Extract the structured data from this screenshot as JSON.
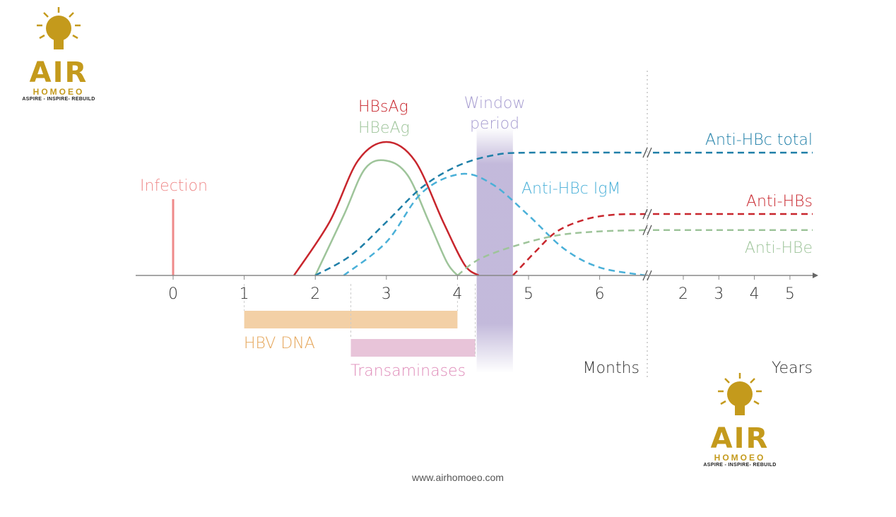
{
  "logo": {
    "brand": "AIR",
    "sub": "HOMOEO",
    "tagline": "ASPIRE - INSPIRE- REBUILD",
    "color": "#c49a1c"
  },
  "website": "www.airhomoeo.com",
  "chart_data": {
    "type": "line",
    "title": "",
    "x_units_left": "Months",
    "x_units_right": "Years",
    "month_ticks": [
      "0",
      "1",
      "2",
      "3",
      "4",
      "5",
      "6"
    ],
    "year_ticks": [
      "2",
      "3",
      "4",
      "5"
    ],
    "ylabel": "",
    "ylim": [
      0,
      100
    ],
    "infection": {
      "label": "Infection",
      "month": 0,
      "color": "#ef8a8a"
    },
    "window_period": {
      "label_line1": "Window",
      "label_line2": "period",
      "start": 4.27,
      "end": 4.78,
      "color": "#b4a8d2"
    },
    "series": [
      {
        "name": "HBsAg",
        "color": "#c8262d",
        "dashed": false,
        "points": [
          [
            1.7,
            0
          ],
          [
            2.2,
            40
          ],
          [
            2.6,
            86
          ],
          [
            3,
            100
          ],
          [
            3.4,
            86
          ],
          [
            3.8,
            40
          ],
          [
            4.1,
            8
          ],
          [
            4.3,
            0
          ]
        ]
      },
      {
        "name": "HBeAg",
        "color": "#9ec49a",
        "dashed": false,
        "points": [
          [
            2,
            0
          ],
          [
            2.4,
            45
          ],
          [
            2.7,
            80
          ],
          [
            3,
            86
          ],
          [
            3.3,
            75
          ],
          [
            3.6,
            40
          ],
          [
            3.85,
            10
          ],
          [
            4,
            0
          ]
        ]
      },
      {
        "name": "Anti-HBc total",
        "color": "#1f7fa8",
        "dashed": true,
        "points": [
          [
            2,
            0
          ],
          [
            2.5,
            15
          ],
          [
            3,
            40
          ],
          [
            3.5,
            66
          ],
          [
            4,
            82
          ],
          [
            4.5,
            90
          ],
          [
            5,
            92
          ],
          [
            6.65,
            92
          ]
        ],
        "later_level": 92
      },
      {
        "name": "Anti-HBc IgM",
        "color": "#4ab0d8",
        "dashed": true,
        "points": [
          [
            2.4,
            0
          ],
          [
            3,
            25
          ],
          [
            3.5,
            62
          ],
          [
            4.05,
            76
          ],
          [
            4.5,
            68
          ],
          [
            5,
            45
          ],
          [
            5.5,
            20
          ],
          [
            6,
            6
          ],
          [
            6.65,
            0
          ]
        ],
        "later_level": 0
      },
      {
        "name": "Anti-HBs",
        "color": "#c8262d",
        "dashed": true,
        "points": [
          [
            4.78,
            0
          ],
          [
            5.1,
            18
          ],
          [
            5.4,
            33
          ],
          [
            5.8,
            42
          ],
          [
            6.2,
            45.5
          ],
          [
            6.65,
            46
          ]
        ],
        "later_level": 46
      },
      {
        "name": "Anti-HBe",
        "color": "#9ec49a",
        "dashed": true,
        "points": [
          [
            4,
            0
          ],
          [
            4.3,
            12
          ],
          [
            4.8,
            22
          ],
          [
            5.4,
            30
          ],
          [
            6,
            33
          ],
          [
            6.65,
            34
          ]
        ],
        "later_level": 34
      }
    ],
    "bars": [
      {
        "name": "HBV DNA",
        "start": 1,
        "end": 4,
        "color": "#f3d0a6",
        "text_color": "#e5a558"
      },
      {
        "name": "Transaminases",
        "start": 2.5,
        "end": 4.25,
        "color": "#e8c4d9",
        "text_color": "#df8ab8"
      }
    ]
  }
}
